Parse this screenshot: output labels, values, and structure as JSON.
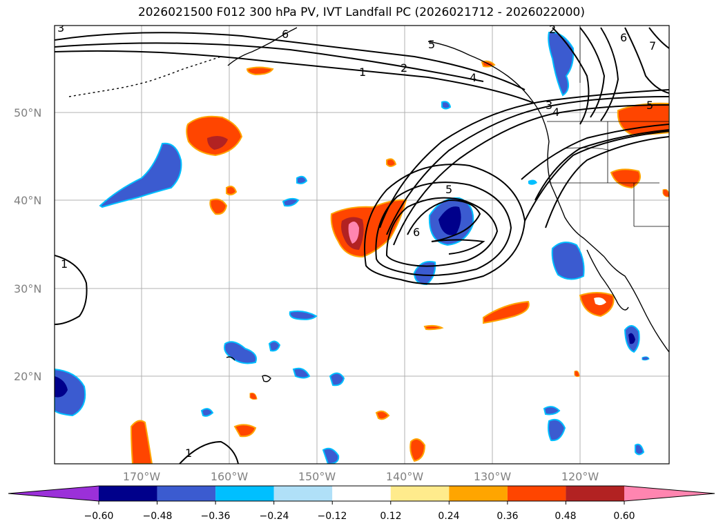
{
  "title": "2026021500 F012 300 hPa PV, IVT Landfall PC (2026021712 - 2026022000)",
  "lat_labels": [
    "50°N",
    "40°N",
    "30°N",
    "20°N"
  ],
  "lon_labels": [
    "170°W",
    "160°W",
    "150°W",
    "140°W",
    "130°W",
    "120°W"
  ],
  "colorbar": {
    "ticks": [
      "−0.60",
      "−0.48",
      "−0.36",
      "−0.24",
      "−0.12",
      "0.12",
      "0.24",
      "0.36",
      "0.48",
      "0.60"
    ],
    "colors": [
      "#9b30d9",
      "#00008b",
      "#3b5bd0",
      "#00bfff",
      "#b0e0f8",
      "#ffffff",
      "#ffeb8c",
      "#ffa500",
      "#ff4500",
      "#b22222",
      "#ff85b0"
    ]
  },
  "contour_labels": [
    "1",
    "2",
    "3",
    "4",
    "5",
    "6",
    "1",
    "1",
    "5",
    "6",
    "5",
    "6",
    "7",
    "2",
    "3",
    "4"
  ],
  "colors": {
    "neg_dark": "#00008b",
    "neg_mid": "#3b5bd0",
    "neg_light": "#00bfff",
    "neg_pale": "#b0e0f8",
    "pos_pale": "#ffeb8c",
    "pos_mid": "#ffa500",
    "pos_strong": "#ff4500",
    "pos_dark": "#b22222",
    "pos_max": "#ff85b0"
  }
}
